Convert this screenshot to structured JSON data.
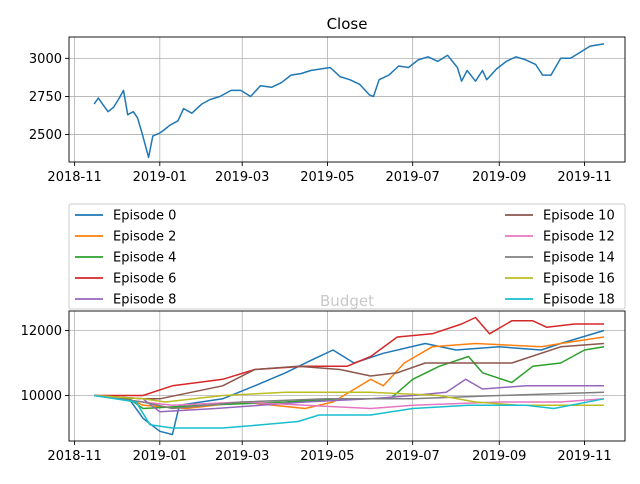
{
  "chart_data": [
    {
      "type": "line",
      "title": "Close",
      "xlabel": "",
      "ylabel": "",
      "x_ticks": [
        "2018-11",
        "2019-01",
        "2019-03",
        "2019-05",
        "2019-07",
        "2019-09",
        "2019-11"
      ],
      "y_ticks": [
        2500,
        2750,
        3000
      ],
      "xlim": [
        "2018-10-28",
        "2019-11-30"
      ],
      "ylim": [
        2320,
        3140
      ],
      "grid": true,
      "series": [
        {
          "color": "#1f77b4",
          "points": [
            [
              "2018-11-15",
              2700
            ],
            [
              "2018-11-18",
              2740
            ],
            [
              "2018-11-21",
              2700
            ],
            [
              "2018-11-25",
              2650
            ],
            [
              "2018-11-29",
              2680
            ],
            [
              "2018-12-03",
              2740
            ],
            [
              "2018-12-06",
              2790
            ],
            [
              "2018-12-09",
              2630
            ],
            [
              "2018-12-13",
              2650
            ],
            [
              "2018-12-16",
              2610
            ],
            [
              "2018-12-19",
              2520
            ],
            [
              "2018-12-24",
              2350
            ],
            [
              "2018-12-27",
              2490
            ],
            [
              "2019-01-01",
              2510
            ],
            [
              "2019-01-04",
              2530
            ],
            [
              "2019-01-08",
              2560
            ],
            [
              "2019-01-14",
              2590
            ],
            [
              "2019-01-18",
              2670
            ],
            [
              "2019-01-24",
              2640
            ],
            [
              "2019-01-31",
              2700
            ],
            [
              "2019-02-06",
              2730
            ],
            [
              "2019-02-13",
              2750
            ],
            [
              "2019-02-21",
              2790
            ],
            [
              "2019-02-28",
              2790
            ],
            [
              "2019-03-07",
              2750
            ],
            [
              "2019-03-14",
              2820
            ],
            [
              "2019-03-22",
              2810
            ],
            [
              "2019-03-29",
              2840
            ],
            [
              "2019-04-05",
              2890
            ],
            [
              "2019-04-12",
              2900
            ],
            [
              "2019-04-19",
              2920
            ],
            [
              "2019-04-26",
              2930
            ],
            [
              "2019-05-03",
              2940
            ],
            [
              "2019-05-10",
              2880
            ],
            [
              "2019-05-17",
              2860
            ],
            [
              "2019-05-24",
              2830
            ],
            [
              "2019-05-31",
              2760
            ],
            [
              "2019-06-03",
              2750
            ],
            [
              "2019-06-07",
              2860
            ],
            [
              "2019-06-14",
              2890
            ],
            [
              "2019-06-21",
              2950
            ],
            [
              "2019-06-28",
              2940
            ],
            [
              "2019-07-05",
              2990
            ],
            [
              "2019-07-12",
              3010
            ],
            [
              "2019-07-19",
              2980
            ],
            [
              "2019-07-26",
              3020
            ],
            [
              "2019-08-02",
              2940
            ],
            [
              "2019-08-05",
              2850
            ],
            [
              "2019-08-09",
              2920
            ],
            [
              "2019-08-15",
              2850
            ],
            [
              "2019-08-20",
              2920
            ],
            [
              "2019-08-23",
              2860
            ],
            [
              "2019-08-30",
              2930
            ],
            [
              "2019-09-06",
              2980
            ],
            [
              "2019-09-13",
              3010
            ],
            [
              "2019-09-20",
              2990
            ],
            [
              "2019-09-27",
              2960
            ],
            [
              "2019-10-02",
              2890
            ],
            [
              "2019-10-08",
              2890
            ],
            [
              "2019-10-15",
              3000
            ],
            [
              "2019-10-22",
              3000
            ],
            [
              "2019-10-29",
              3040
            ],
            [
              "2019-11-05",
              3080
            ],
            [
              "2019-11-15",
              3095
            ]
          ]
        }
      ]
    },
    {
      "type": "line",
      "title": "Budget",
      "xlabel": "",
      "ylabel": "",
      "x_ticks": [
        "2018-11",
        "2019-01",
        "2019-03",
        "2019-05",
        "2019-07",
        "2019-09",
        "2019-11"
      ],
      "y_ticks": [
        10000,
        12000
      ],
      "xlim": [
        "2018-10-28",
        "2019-11-30"
      ],
      "ylim": [
        8600,
        12600
      ],
      "grid": true,
      "legend": {
        "placement": "above",
        "columns": 2
      },
      "series": [
        {
          "name": "Episode 0",
          "color": "#1f77b4",
          "points": [
            [
              "2018-11-15",
              10000
            ],
            [
              "2018-12-10",
              9900
            ],
            [
              "2018-12-20",
              9300
            ],
            [
              "2019-01-01",
              8900
            ],
            [
              "2019-01-10",
              8800
            ],
            [
              "2019-01-15",
              9700
            ],
            [
              "2019-02-15",
              9900
            ],
            [
              "2019-03-10",
              10300
            ],
            [
              "2019-04-01",
              10700
            ],
            [
              "2019-04-20",
              11100
            ],
            [
              "2019-05-05",
              11400
            ],
            [
              "2019-05-20",
              11000
            ],
            [
              "2019-06-10",
              11300
            ],
            [
              "2019-07-10",
              11600
            ],
            [
              "2019-08-01",
              11400
            ],
            [
              "2019-09-01",
              11500
            ],
            [
              "2019-10-01",
              11400
            ],
            [
              "2019-10-15",
              11600
            ],
            [
              "2019-11-15",
              12000
            ]
          ]
        },
        {
          "name": "Episode 2",
          "color": "#ff7f0e",
          "points": [
            [
              "2018-11-15",
              10000
            ],
            [
              "2018-12-10",
              9900
            ],
            [
              "2018-12-20",
              9700
            ],
            [
              "2019-01-20",
              9600
            ],
            [
              "2019-03-01",
              9800
            ],
            [
              "2019-04-15",
              9600
            ],
            [
              "2019-05-05",
              9800
            ],
            [
              "2019-06-01",
              10500
            ],
            [
              "2019-06-10",
              10300
            ],
            [
              "2019-06-25",
              11000
            ],
            [
              "2019-07-15",
              11500
            ],
            [
              "2019-08-15",
              11600
            ],
            [
              "2019-10-01",
              11500
            ],
            [
              "2019-10-15",
              11600
            ],
            [
              "2019-11-15",
              11800
            ]
          ]
        },
        {
          "name": "Episode 4",
          "color": "#2ca02c",
          "points": [
            [
              "2018-11-15",
              10000
            ],
            [
              "2018-12-10",
              9900
            ],
            [
              "2018-12-20",
              9600
            ],
            [
              "2019-02-01",
              9700
            ],
            [
              "2019-04-01",
              9800
            ],
            [
              "2019-05-10",
              9900
            ],
            [
              "2019-06-15",
              9900
            ],
            [
              "2019-07-01",
              10500
            ],
            [
              "2019-07-20",
              10900
            ],
            [
              "2019-08-10",
              11200
            ],
            [
              "2019-08-20",
              10700
            ],
            [
              "2019-09-10",
              10400
            ],
            [
              "2019-09-25",
              10900
            ],
            [
              "2019-10-15",
              11000
            ],
            [
              "2019-11-01",
              11400
            ],
            [
              "2019-11-15",
              11500
            ]
          ]
        },
        {
          "name": "Episode 6",
          "color": "#d62728",
          "points": [
            [
              "2018-11-15",
              10000
            ],
            [
              "2018-12-20",
              10000
            ],
            [
              "2019-01-10",
              10300
            ],
            [
              "2019-02-15",
              10500
            ],
            [
              "2019-03-10",
              10800
            ],
            [
              "2019-04-15",
              10900
            ],
            [
              "2019-05-15",
              10900
            ],
            [
              "2019-06-01",
              11200
            ],
            [
              "2019-06-20",
              11800
            ],
            [
              "2019-07-15",
              11900
            ],
            [
              "2019-08-05",
              12200
            ],
            [
              "2019-08-15",
              12400
            ],
            [
              "2019-08-25",
              11900
            ],
            [
              "2019-09-10",
              12300
            ],
            [
              "2019-09-25",
              12300
            ],
            [
              "2019-10-05",
              12100
            ],
            [
              "2019-10-25",
              12200
            ],
            [
              "2019-11-15",
              12200
            ]
          ]
        },
        {
          "name": "Episode 8",
          "color": "#9467bd",
          "points": [
            [
              "2018-11-15",
              10000
            ],
            [
              "2018-12-20",
              9900
            ],
            [
              "2019-01-01",
              9500
            ],
            [
              "2019-02-10",
              9600
            ],
            [
              "2019-04-15",
              9800
            ],
            [
              "2019-06-01",
              9900
            ],
            [
              "2019-07-01",
              10000
            ],
            [
              "2019-07-25",
              10100
            ],
            [
              "2019-08-08",
              10500
            ],
            [
              "2019-08-20",
              10200
            ],
            [
              "2019-09-20",
              10300
            ],
            [
              "2019-11-15",
              10300
            ]
          ]
        },
        {
          "name": "Episode 10",
          "color": "#8c564b",
          "points": [
            [
              "2018-11-15",
              10000
            ],
            [
              "2018-12-20",
              9900
            ],
            [
              "2019-01-01",
              9900
            ],
            [
              "2019-02-15",
              10300
            ],
            [
              "2019-03-10",
              10800
            ],
            [
              "2019-04-10",
              10900
            ],
            [
              "2019-05-10",
              10800
            ],
            [
              "2019-06-01",
              10600
            ],
            [
              "2019-06-20",
              10700
            ],
            [
              "2019-07-10",
              11000
            ],
            [
              "2019-08-10",
              11000
            ],
            [
              "2019-09-10",
              11000
            ],
            [
              "2019-10-15",
              11500
            ],
            [
              "2019-11-15",
              11600
            ]
          ]
        },
        {
          "name": "Episode 12",
          "color": "#e377c2",
          "points": [
            [
              "2018-11-15",
              10000
            ],
            [
              "2018-12-20",
              9800
            ],
            [
              "2019-01-10",
              9700
            ],
            [
              "2019-03-01",
              9800
            ],
            [
              "2019-04-15",
              9700
            ],
            [
              "2019-06-01",
              9600
            ],
            [
              "2019-07-01",
              9700
            ],
            [
              "2019-09-01",
              9800
            ],
            [
              "2019-10-15",
              9800
            ],
            [
              "2019-11-15",
              9900
            ]
          ]
        },
        {
          "name": "Episode 14",
          "color": "#7f7f7f",
          "points": [
            [
              "2018-11-15",
              10000
            ],
            [
              "2018-12-20",
              9800
            ],
            [
              "2019-01-10",
              9600
            ],
            [
              "2019-03-01",
              9800
            ],
            [
              "2019-05-01",
              9900
            ],
            [
              "2019-07-01",
              9900
            ],
            [
              "2019-09-01",
              10000
            ],
            [
              "2019-11-15",
              10100
            ]
          ]
        },
        {
          "name": "Episode 16",
          "color": "#bcbd22",
          "points": [
            [
              "2018-11-15",
              10000
            ],
            [
              "2018-12-20",
              9900
            ],
            [
              "2019-01-05",
              9800
            ],
            [
              "2019-02-15",
              10000
            ],
            [
              "2019-04-01",
              10100
            ],
            [
              "2019-06-01",
              10100
            ],
            [
              "2019-07-20",
              10000
            ],
            [
              "2019-08-15",
              9800
            ],
            [
              "2019-09-15",
              9700
            ],
            [
              "2019-11-15",
              9700
            ]
          ]
        },
        {
          "name": "Episode 18",
          "color": "#17becf",
          "points": [
            [
              "2018-11-15",
              10000
            ],
            [
              "2018-12-15",
              9800
            ],
            [
              "2018-12-25",
              9100
            ],
            [
              "2019-01-10",
              9000
            ],
            [
              "2019-02-15",
              9000
            ],
            [
              "2019-03-15",
              9100
            ],
            [
              "2019-04-10",
              9200
            ],
            [
              "2019-04-25",
              9400
            ],
            [
              "2019-06-01",
              9400
            ],
            [
              "2019-07-01",
              9600
            ],
            [
              "2019-08-10",
              9700
            ],
            [
              "2019-09-20",
              9700
            ],
            [
              "2019-10-10",
              9600
            ],
            [
              "2019-11-15",
              9900
            ]
          ]
        }
      ]
    }
  ]
}
